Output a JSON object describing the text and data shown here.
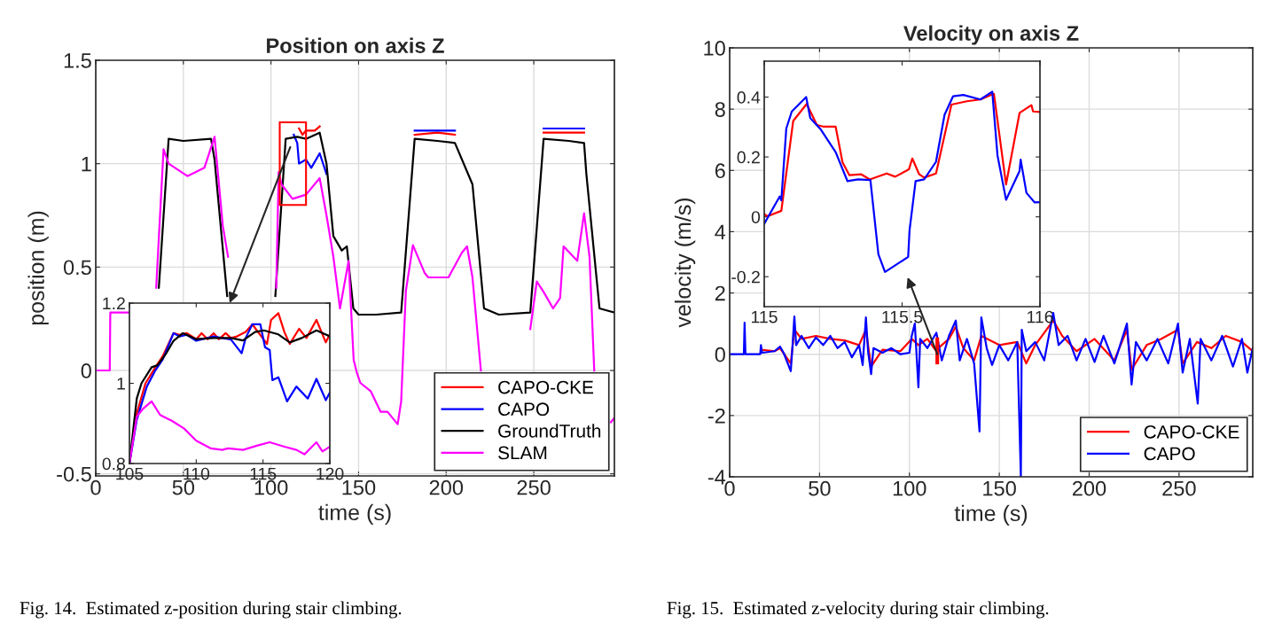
{
  "chart_data": [
    {
      "type": "line",
      "title": "Position on axis Z",
      "xlabel": "time (s)",
      "ylabel": "position (m)",
      "xlim": [
        0,
        296
      ],
      "ylim": [
        -0.51,
        1.5
      ],
      "xticks": [
        0,
        50,
        100,
        150,
        200,
        250
      ],
      "yticks": [
        -0.5,
        0,
        0.5,
        1,
        1.5
      ],
      "grid": true,
      "legend": "bottom right",
      "annotations": [
        "Fig. 14.  Estimated z-position during stair climbing."
      ],
      "series": [
        {
          "name": "CAPO-CKE",
          "color": "#ff0000",
          "x": [
            116,
            118,
            120,
            125,
            127.8,
            129,
            182,
            195,
            205,
            210,
            255.6,
            270,
            278.7
          ],
          "values": [
            1.17,
            1.14,
            1.16,
            1.16,
            1.18,
            null,
            1.14,
            1.15,
            1.14,
            null,
            1.15,
            1.15,
            1.15
          ]
        },
        {
          "name": "CAPO",
          "color": "#0000ff",
          "x": [
            113,
            115,
            116,
            120,
            123,
            127.8,
            131.7,
            133,
            182,
            195,
            205,
            210,
            255.6,
            270,
            278.7
          ],
          "values": [
            1.14,
            1.1,
            1.0,
            1.02,
            0.98,
            1.05,
            0.95,
            null,
            1.16,
            1.16,
            1.16,
            null,
            1.17,
            1.17,
            1.17
          ]
        },
        {
          "name": "GroundTruth",
          "color": "#000000",
          "x": [
            36,
            41.6,
            50,
            65.8,
            67.8,
            75,
            90,
            102.5,
            108.4,
            115,
            120,
            127.8,
            131.7,
            135.6,
            140.4,
            143.3,
            147,
            150,
            160,
            174.3,
            182,
            195,
            205,
            215,
            221.6,
            230,
            248,
            255.6,
            270,
            278.7,
            280,
            287.5,
            296
          ],
          "values": [
            0.4,
            1.12,
            1.11,
            1.12,
            1.02,
            0.36,
            null,
            0.36,
            1.12,
            1.13,
            1.12,
            1.15,
            1.0,
            0.65,
            0.58,
            0.6,
            0.3,
            0.27,
            0.27,
            0.28,
            1.12,
            1.11,
            1.1,
            0.9,
            0.3,
            0.27,
            0.28,
            1.12,
            1.11,
            1.1,
            0.95,
            0.3,
            0.28
          ]
        },
        {
          "name": "SLAM",
          "color": "#ff00ff",
          "x": [
            0,
            8,
            8.3,
            19,
            33,
            34.5,
            38.7,
            41.6,
            52.3,
            62,
            67.8,
            72.5,
            75.5,
            90,
            103,
            104.4,
            106,
            112.3,
            120,
            127.8,
            131.7,
            135.6,
            139.4,
            144.3,
            147.2,
            149,
            151,
            156.9,
            162.6,
            166.5,
            172.3,
            174.3,
            177,
            181,
            187.8,
            189.8,
            201.3,
            209,
            211.9,
            215,
            219.8,
            221,
            244,
            248,
            251.7,
            255.6,
            261,
            265,
            267,
            274.8,
            278.7,
            281.8,
            284.5,
            286,
            294,
            296
          ],
          "values": [
            0,
            0,
            0.28,
            0.28,
            null,
            0.4,
            1.07,
            1.0,
            0.94,
            0.98,
            1.13,
            0.7,
            0.55,
            null,
            0.4,
            0.96,
            0.9,
            0.83,
            0.85,
            0.93,
            0.75,
            0.55,
            0.3,
            0.53,
            0.05,
            -0.01,
            -0.06,
            -0.1,
            -0.2,
            -0.2,
            -0.26,
            -0.15,
            0.385,
            0.606,
            0.47,
            0.45,
            0.45,
            0.57,
            0.6,
            0.45,
            0.0,
            null,
            null,
            0.2,
            0.43,
            0.38,
            0.3,
            0.35,
            0.6,
            0.53,
            0.76,
            0.55,
            0.0,
            null,
            -0.25,
            -0.23
          ]
        }
      ]
    },
    {
      "type": "line",
      "xlim": [
        105,
        120
      ],
      "ylim": [
        0.8,
        1.2
      ],
      "xticks": [
        105,
        110,
        115,
        120
      ],
      "yticks": [
        0.8,
        1,
        1.2
      ],
      "series": [
        {
          "color": "#ff0000",
          "x": [
            105,
            105.55,
            106.2,
            106.9,
            107.5,
            108.3,
            108.75,
            109.3,
            110,
            110.4,
            110.85,
            111.3,
            111.7,
            112.2,
            112.6,
            113.05,
            113.7,
            114.2,
            115.3,
            115.6,
            116.15,
            116.6,
            117,
            117.7,
            118.25,
            119,
            119.7,
            120
          ],
          "values": [
            0.8,
            0.925,
            1.0,
            1.038,
            1.068,
            1.125,
            1.121,
            1.125,
            1.11,
            1.125,
            1.11,
            1.125,
            1.11,
            1.125,
            1.113,
            1.117,
            1.128,
            1.147,
            1.098,
            1.158,
            1.175,
            1.128,
            1.098,
            1.136,
            1.113,
            1.158,
            1.102,
            1.122
          ]
        },
        {
          "color": "#0000ff",
          "x": [
            105,
            105.55,
            106.3,
            106.9,
            107.5,
            108.3,
            108.75,
            109.3,
            110,
            111.3,
            112.6,
            113.4,
            113.7,
            114.2,
            114.8,
            115.15,
            115.5,
            115.7,
            116.15,
            116.8,
            117.5,
            118.35,
            119,
            119.7,
            120
          ],
          "values": [
            0.8,
            0.909,
            0.992,
            1.03,
            1.06,
            1.125,
            1.117,
            1.121,
            1.106,
            1.117,
            1.109,
            1.075,
            1.113,
            1.147,
            1.147,
            1.09,
            1.083,
            1.008,
            1.015,
            0.955,
            0.992,
            0.962,
            1.011,
            0.958,
            0.977
          ]
        },
        {
          "color": "#000000",
          "x": [
            105,
            105.55,
            105.9,
            106.66,
            107.1,
            107.76,
            108.3,
            109,
            110,
            111.3,
            112.6,
            113.5,
            114.4,
            115.05,
            116.15,
            117,
            117.9,
            119,
            120
          ],
          "values": [
            0.8,
            0.962,
            1.0,
            1.04,
            1.045,
            1.075,
            1.106,
            1.125,
            1.11,
            1.113,
            1.113,
            1.107,
            1.128,
            1.132,
            1.122,
            1.102,
            1.113,
            1.132,
            1.117
          ]
        },
        {
          "color": "#ff00ff",
          "x": [
            105,
            105.55,
            106,
            106.66,
            107.3,
            108.2,
            109.1,
            110,
            111.07,
            111.95,
            112.4,
            113.5,
            114.6,
            115.5,
            116.6,
            117.5,
            118.1,
            119,
            119.45,
            120
          ],
          "values": [
            0.8,
            0.917,
            0.936,
            0.955,
            0.921,
            0.906,
            0.887,
            0.857,
            0.838,
            0.834,
            0.838,
            0.834,
            0.845,
            0.853,
            0.842,
            0.834,
            0.823,
            0.853,
            0.83,
            0.842
          ]
        }
      ]
    },
    {
      "type": "line",
      "title": "Velocity on axis Z",
      "xlabel": "time (s)",
      "ylabel": "velocity (m/s)",
      "xlim": [
        0,
        291
      ],
      "ylim": [
        -4,
        10
      ],
      "xticks": [
        0,
        50,
        100,
        150,
        200,
        250
      ],
      "yticks": [
        -4,
        -2,
        0,
        2,
        4,
        6,
        8,
        10
      ],
      "grid": true,
      "legend": "bottom right",
      "annotations": [
        "Fig. 15.  Estimated z-velocity during stair climbing."
      ],
      "series": [
        {
          "name": "CAPO-CKE",
          "color": "#ff0000",
          "x": [
            17.4,
            25,
            28,
            34,
            36,
            40,
            48,
            56,
            64,
            72,
            75.8,
            78.7,
            85,
            95,
            101.3,
            105,
            110,
            115,
            116,
            122,
            125.8,
            130,
            136,
            140,
            150,
            160,
            165,
            170,
            180,
            185,
            193,
            203,
            214,
            221,
            223.6,
            232,
            240,
            249.4,
            252,
            260,
            268,
            276,
            285,
            291
          ],
          "values": [
            0.15,
            0.1,
            0.2,
            -0.3,
            0.8,
            0.5,
            0.6,
            0.5,
            0.45,
            0.3,
            0.8,
            -0.4,
            0.15,
            0.1,
            0.5,
            0.3,
            0.5,
            0.1,
            0.2,
            0.5,
            0.9,
            0.2,
            -0.2,
            0.6,
            0.3,
            0.4,
            -0.3,
            0.3,
            1.1,
            0.6,
            0.1,
            0.5,
            -0.2,
            0.8,
            -0.5,
            0.3,
            0.5,
            0.8,
            -0.3,
            0.4,
            0.2,
            0.6,
            0.4,
            0.1
          ]
        },
        {
          "name": "CAPO",
          "color": "#0000ff",
          "x": [
            0,
            7.9,
            8.3,
            8.8,
            17,
            17.4,
            18,
            25,
            28,
            30,
            34,
            35,
            36,
            37,
            40,
            44,
            48,
            52,
            56,
            60,
            64,
            68,
            72,
            74,
            75.8,
            77,
            78.7,
            80,
            85,
            90,
            95,
            100,
            101.3,
            103,
            105,
            106,
            110,
            115,
            118,
            122,
            125.8,
            128,
            132,
            136,
            139,
            140,
            143,
            146,
            150,
            155,
            160,
            162,
            162.5,
            165,
            170,
            175,
            180,
            183,
            188,
            193,
            198,
            203,
            208,
            214,
            221,
            223.6,
            226,
            232,
            238,
            244,
            249.4,
            252,
            256,
            260.4,
            262,
            268,
            274,
            280,
            285,
            288,
            291
          ],
          "values": [
            0,
            0,
            1.03,
            0,
            0,
            0.3,
            0.05,
            0.1,
            0.25,
            0.05,
            -0.55,
            0.3,
            1.23,
            0.3,
            0.6,
            0.2,
            0.55,
            0.3,
            0.6,
            0.2,
            0.4,
            -0.1,
            0.3,
            -0.35,
            1.2,
            0.1,
            -0.65,
            0.2,
            0.05,
            0.2,
            0.0,
            0.05,
            0.6,
            1.0,
            -1.08,
            0.5,
            0.2,
            0.7,
            -0.2,
            0.6,
            1.1,
            -0.2,
            0.5,
            -0.3,
            -2.52,
            1.2,
            0.2,
            -0.35,
            0.3,
            -0.2,
            0.4,
            -4.0,
            0.8,
            0.1,
            0.4,
            -0.2,
            1.35,
            0.3,
            0.6,
            -0.2,
            0.5,
            -0.25,
            0.6,
            -0.3,
            1.0,
            -0.99,
            0.4,
            -0.2,
            0.5,
            -0.3,
            1.0,
            -0.6,
            0.5,
            -1.61,
            0.5,
            -0.2,
            0.6,
            -0.4,
            0.5,
            -0.6,
            0.2
          ]
        }
      ]
    },
    {
      "type": "line",
      "xlim": [
        115,
        116
      ],
      "ylim": [
        -0.3,
        0.52
      ],
      "xticks": [
        115,
        115.5,
        116
      ],
      "yticks": [
        -0.2,
        0,
        0.2,
        0.4
      ],
      "series": [
        {
          "color": "#ff0000",
          "x": [
            115,
            115.012,
            115.062,
            115.105,
            115.154,
            115.191,
            115.216,
            115.259,
            115.284,
            115.309,
            115.352,
            115.383,
            115.444,
            115.475,
            115.525,
            115.537,
            115.562,
            115.58,
            115.623,
            115.679,
            115.735,
            115.784,
            115.833,
            115.877,
            115.926,
            115.969,
            115.975,
            116
          ],
          "values": [
            0.009,
            0.002,
            0.02,
            0.32,
            0.377,
            0.307,
            0.301,
            0.301,
            0.182,
            0.139,
            0.142,
            0.125,
            0.145,
            0.134,
            0.159,
            0.195,
            0.142,
            0.131,
            0.145,
            0.375,
            0.386,
            0.392,
            0.411,
            0.108,
            0.347,
            0.373,
            0.352,
            0.35
          ]
        },
        {
          "color": "#0000ff",
          "x": [
            115,
            115.056,
            115.062,
            115.08,
            115.1,
            115.152,
            115.167,
            115.204,
            115.259,
            115.302,
            115.34,
            115.385,
            115.414,
            115.438,
            115.522,
            115.527,
            115.549,
            115.58,
            115.623,
            115.654,
            115.685,
            115.722,
            115.784,
            115.827,
            115.846,
            115.877,
            115.926,
            115.93,
            115.951,
            115.981,
            116
          ],
          "values": [
            -0.023,
            0.068,
            0.055,
            0.295,
            0.352,
            0.4,
            0.33,
            0.293,
            0.216,
            0.119,
            0.125,
            0.123,
            -0.125,
            -0.184,
            -0.134,
            -0.045,
            0.119,
            0.125,
            0.184,
            0.341,
            0.403,
            0.407,
            0.392,
            0.418,
            0.205,
            0.057,
            0.153,
            0.191,
            0.08,
            0.048,
            0.049
          ]
        }
      ]
    }
  ]
}
